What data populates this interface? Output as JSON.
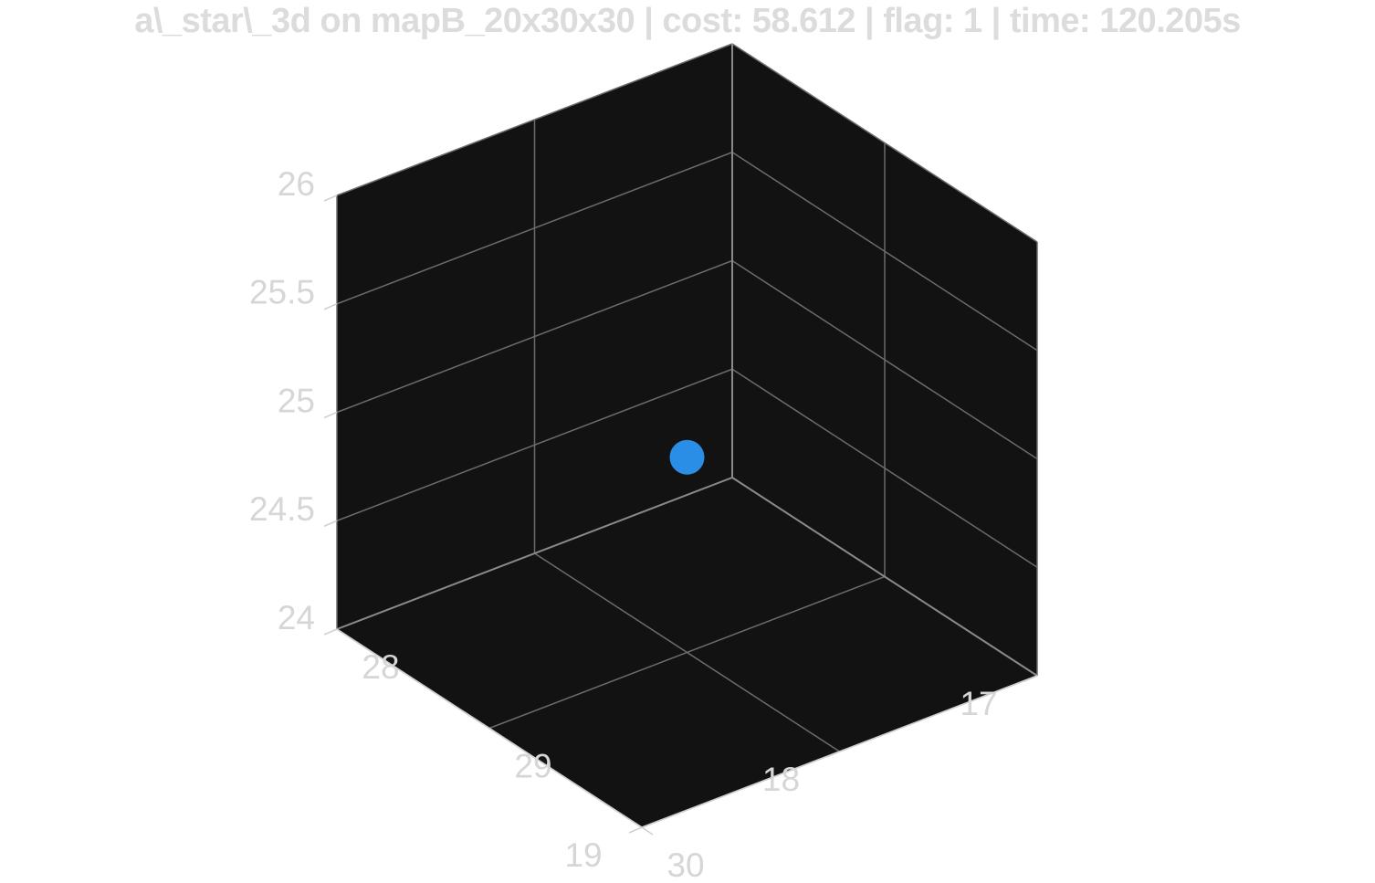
{
  "chart_data": {
    "type": "scatter",
    "title": "a\\_star\\_3d on mapB_20x30x30 | cost: 58.612 | flag: 1 | time: 120.205s",
    "xlabel": "",
    "ylabel": "",
    "zlabel": "",
    "xlim": [
      17,
      19
    ],
    "ylim": [
      28,
      30
    ],
    "zlim": [
      24,
      26
    ],
    "x_ticks": [
      17,
      18,
      19
    ],
    "y_ticks": [
      28,
      29,
      30
    ],
    "z_ticks": [
      24,
      24.5,
      25,
      25.5,
      26
    ],
    "x_tick_labels": [
      "17",
      "18",
      "19"
    ],
    "y_tick_labels": [
      "28",
      "29",
      "30"
    ],
    "z_tick_labels": [
      "24",
      "24.5",
      "25",
      "25.5",
      "26"
    ],
    "grid": true,
    "background": "#121212",
    "series": [
      {
        "color": "#2b8ee6",
        "points": [
          {
            "x": 18.0,
            "y": 29.0,
            "z": 24.9
          }
        ]
      }
    ]
  },
  "colors": {
    "pane": "#121212",
    "grid": "#6b6b6b",
    "edge": "#8a8a8a",
    "tick_text": "#d6d6d6",
    "title": "#dcdcdc"
  }
}
